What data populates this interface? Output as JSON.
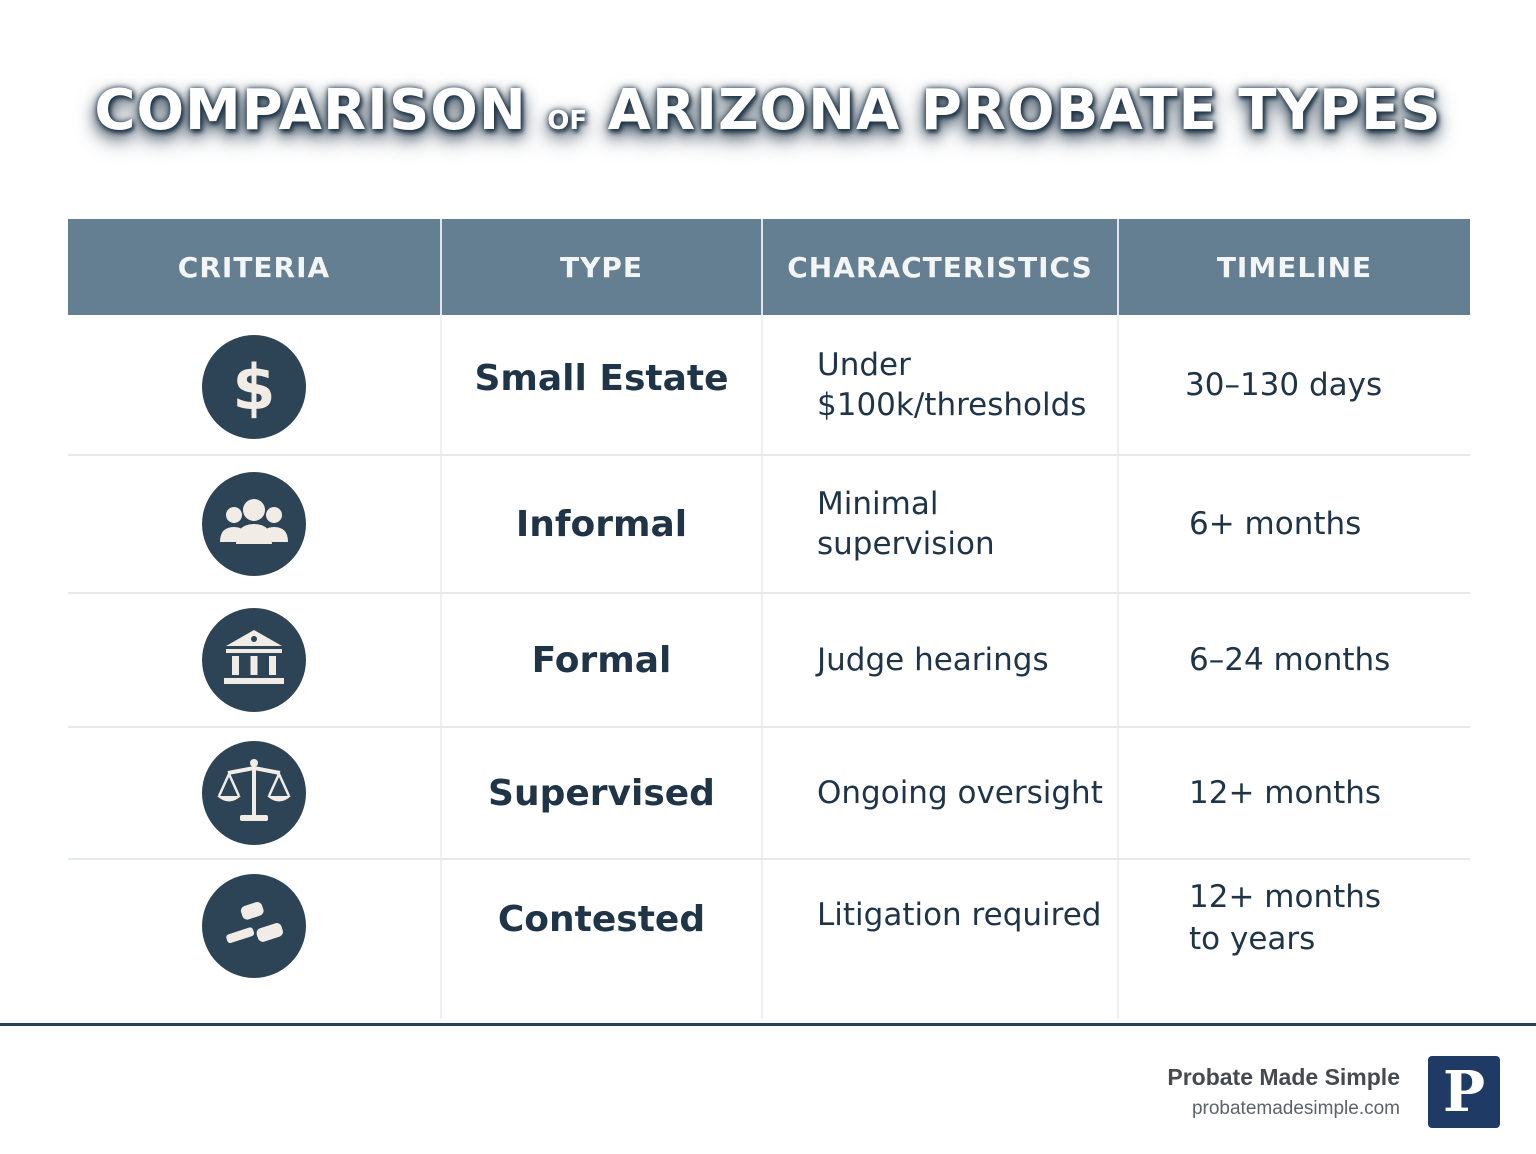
{
  "title": {
    "part1": "COMPARISON",
    "part2": "OF",
    "part3": "ARIZONA PROBATE TYPES"
  },
  "table": {
    "headers": [
      "CRITERIA",
      "TYPE",
      "CHARACTERISTICS",
      "TIMELINE"
    ],
    "rows": [
      {
        "icon": "dollar-icon",
        "type": "Small Estate",
        "characteristics": [
          "Under",
          "$100k/thresholds"
        ],
        "timeline": [
          "30–130 days"
        ]
      },
      {
        "icon": "people-icon",
        "type": "Informal",
        "characteristics": [
          "Minimal supervision"
        ],
        "timeline": [
          "6+ months"
        ]
      },
      {
        "icon": "courthouse-icon",
        "type": "Formal",
        "characteristics": [
          "Judge hearings"
        ],
        "timeline": [
          "6–24 months"
        ]
      },
      {
        "icon": "scales-icon",
        "type": "Supervised",
        "characteristics": [
          "Ongoing oversight"
        ],
        "timeline": [
          "12+ months"
        ]
      },
      {
        "icon": "gavel-icon",
        "type": "Contested",
        "characteristics": [
          "Litigation required"
        ],
        "timeline": [
          "12+ months",
          "to years"
        ]
      }
    ]
  },
  "brand": {
    "name": "Probate Made Simple",
    "url": "probatemadesimple.com",
    "logo_letter": "P"
  },
  "colors": {
    "header_bg": "#647f91",
    "icon_bg": "#2d4457",
    "text_dark": "#1f3447",
    "logo_bg": "#1f3a64"
  }
}
